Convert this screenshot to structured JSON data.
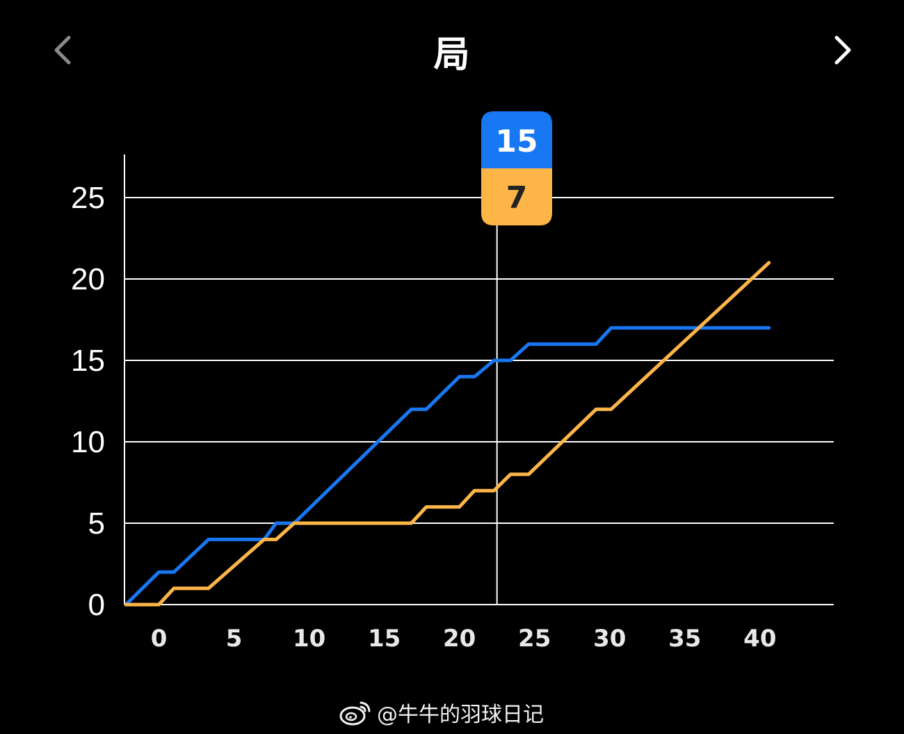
{
  "header": {
    "title": "局",
    "prev_icon": "chevron-left-icon",
    "next_icon": "chevron-right-icon"
  },
  "tooltip": {
    "top_value": "15",
    "bottom_value": "7"
  },
  "watermark": {
    "text": "@牛牛的羽球日记",
    "icon": "weibo-icon"
  },
  "colors": {
    "background": "#000000",
    "series_blue": "#1877F2",
    "series_orange": "#FDB548",
    "grid": "#FFFFFF"
  },
  "chart_data": {
    "type": "line",
    "title": "",
    "xlabel": "",
    "ylabel": "",
    "xlim": [
      -2.2,
      42.6
    ],
    "ylim": [
      0,
      25
    ],
    "x_ticks": [
      0,
      5,
      10,
      15,
      20,
      25,
      30,
      35,
      40
    ],
    "y_ticks": [
      0,
      5,
      10,
      15,
      20,
      25
    ],
    "grid": "horizontal",
    "legend": "none",
    "crosshair_x": 22.5,
    "series": [
      {
        "color": "#1877F2",
        "points": [
          [
            -2.2,
            0
          ],
          [
            0,
            2
          ],
          [
            1,
            2
          ],
          [
            3.3,
            4
          ],
          [
            7,
            4
          ],
          [
            7.8,
            5
          ],
          [
            9,
            5
          ],
          [
            16.8,
            12
          ],
          [
            17.8,
            12
          ],
          [
            20,
            14
          ],
          [
            21,
            14
          ],
          [
            22.3,
            15
          ],
          [
            23.4,
            15
          ],
          [
            24.6,
            16
          ],
          [
            29.1,
            16
          ],
          [
            30.1,
            17
          ],
          [
            40.6,
            17
          ]
        ]
      },
      {
        "color": "#FDB548",
        "points": [
          [
            -2.2,
            0
          ],
          [
            0,
            0
          ],
          [
            1,
            1
          ],
          [
            3.3,
            1
          ],
          [
            7,
            4
          ],
          [
            7.8,
            4
          ],
          [
            9,
            5
          ],
          [
            16.8,
            5
          ],
          [
            17.8,
            6
          ],
          [
            20,
            6
          ],
          [
            21,
            7
          ],
          [
            22.3,
            7
          ],
          [
            23.4,
            8
          ],
          [
            24.6,
            8
          ],
          [
            29.1,
            12
          ],
          [
            30.1,
            12
          ],
          [
            40.6,
            21
          ]
        ]
      }
    ]
  }
}
